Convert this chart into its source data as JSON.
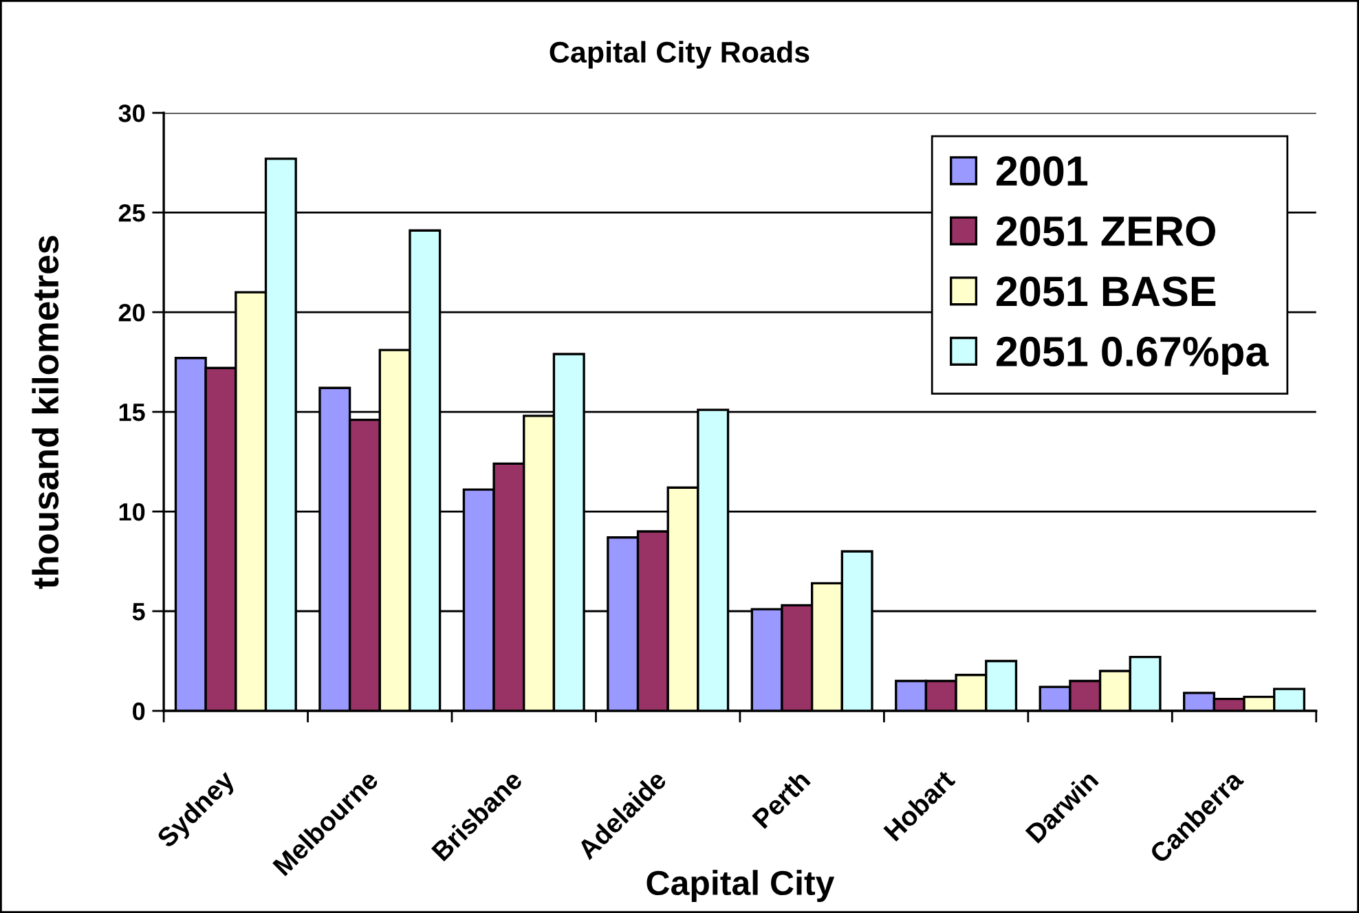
{
  "chart_data": {
    "type": "bar",
    "title": "Capital City Roads",
    "xlabel": "Capital City",
    "ylabel": "thousand kilometres",
    "categories": [
      "Sydney",
      "Melbourne",
      "Brisbane",
      "Adelaide",
      "Perth",
      "Hobart",
      "Darwin",
      "Canberra"
    ],
    "series": [
      {
        "name": "2001",
        "color": "#9999ff",
        "values": [
          17.7,
          16.2,
          11.1,
          8.7,
          5.1,
          1.5,
          1.2,
          0.9
        ]
      },
      {
        "name": "2051 ZERO",
        "color": "#993366",
        "values": [
          17.2,
          14.6,
          12.4,
          9.0,
          5.3,
          1.5,
          1.5,
          0.6
        ]
      },
      {
        "name": "2051 BASE",
        "color": "#ffffcc",
        "values": [
          21.0,
          18.1,
          14.8,
          11.2,
          6.4,
          1.8,
          2.0,
          0.7
        ]
      },
      {
        "name": "2051 0.67%pa",
        "color": "#ccffff",
        "values": [
          27.7,
          24.1,
          17.9,
          15.1,
          8.0,
          2.5,
          2.7,
          1.1
        ]
      }
    ],
    "ylim": [
      0,
      30
    ],
    "yticks": [
      0,
      5,
      10,
      15,
      20,
      25,
      30
    ],
    "grid": "y",
    "legend": "top right"
  }
}
